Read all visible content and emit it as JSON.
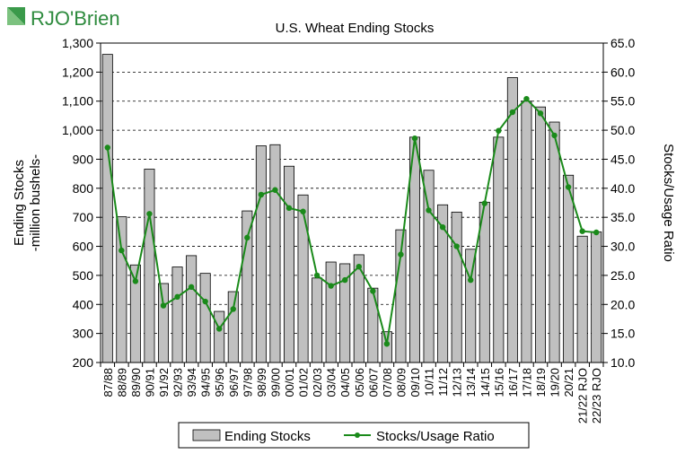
{
  "logo": {
    "brand_text": "RJO'Brien",
    "color": "#2e8b3e"
  },
  "chart_data": {
    "type": "bar+line",
    "title": "U.S. Wheat Ending Stocks",
    "ylabel_left_line1": "Ending Stocks",
    "ylabel_left_line2": "-million bushels-",
    "ylabel_right": "Stocks/Usage Ratio",
    "ylim_left": [
      200,
      1300
    ],
    "ylim_right": [
      10.0,
      65.0
    ],
    "yticks_left": [
      "200",
      "300",
      "400",
      "500",
      "600",
      "700",
      "800",
      "900",
      "1,000",
      "1,100",
      "1,200",
      "1,300"
    ],
    "yticks_right": [
      "10.0",
      "15.0",
      "20.0",
      "25.0",
      "30.0",
      "35.0",
      "40.0",
      "45.0",
      "50.0",
      "55.0",
      "60.0",
      "65.0"
    ],
    "grid": "horizontal dashed",
    "legend_placement": "bottom-center",
    "categories": [
      "87/88",
      "88/89",
      "89/90",
      "90/91",
      "91/92",
      "92/93",
      "93/94",
      "94/95",
      "95/96",
      "96/97",
      "97/98",
      "98/99",
      "99/00",
      "00/01",
      "01/02",
      "02/03",
      "03/04",
      "04/05",
      "05/06",
      "06/07",
      "07/08",
      "08/09",
      "09/10",
      "10/11",
      "11/12",
      "12/13",
      "13/14",
      "14/15",
      "15/16",
      "16/17",
      "17/18",
      "18/19",
      "19/20",
      "20/21",
      "21/22 RJO",
      "22/23 RJO"
    ],
    "series": [
      {
        "name": "Ending Stocks",
        "kind": "bar",
        "color": "#c0c0c0",
        "values": [
          1261,
          702,
          536,
          866,
          472,
          529,
          568,
          507,
          376,
          444,
          722,
          946,
          950,
          876,
          777,
          491,
          546,
          540,
          571,
          456,
          306,
          657,
          976,
          862,
          743,
          718,
          590,
          752,
          976,
          1181,
          1100,
          1080,
          1028,
          845,
          635,
          650
        ]
      },
      {
        "name": "Stocks/Usage Ratio",
        "kind": "line",
        "color": "#1a8a1a",
        "values": [
          47.0,
          29.3,
          24.0,
          35.6,
          19.8,
          21.3,
          23.0,
          20.5,
          15.8,
          19.2,
          31.5,
          38.9,
          39.7,
          36.6,
          36.0,
          25.0,
          23.2,
          24.2,
          26.5,
          22.3,
          13.2,
          28.6,
          48.6,
          36.2,
          33.3,
          30.0,
          24.2,
          37.4,
          49.9,
          53.1,
          55.4,
          52.9,
          49.1,
          40.2,
          32.6,
          32.4
        ]
      }
    ]
  }
}
